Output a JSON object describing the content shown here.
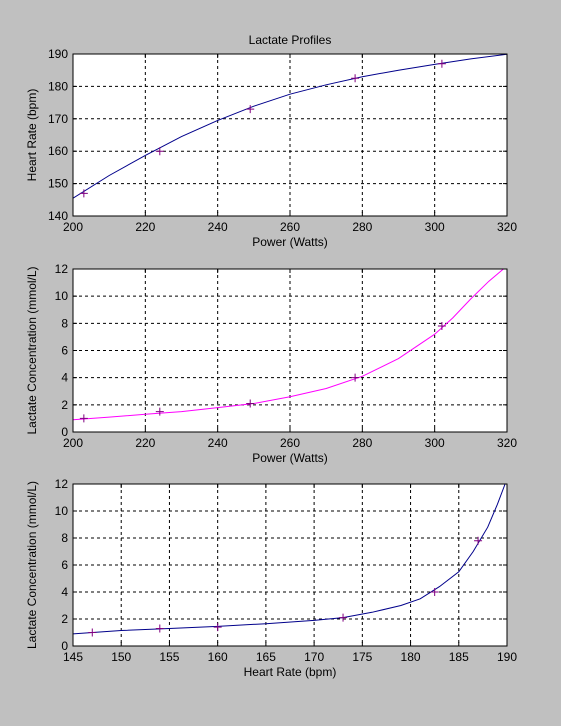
{
  "figure": {
    "background": "#c0c0c0",
    "axes_background": "#ffffff",
    "grid_color": "#000000",
    "marker_color": "#800080",
    "marker_style": "plus"
  },
  "chart_data": [
    {
      "type": "line",
      "title": "Lactate Profiles",
      "xlabel": "Power (Watts)",
      "ylabel": "Heart Rate (bpm)",
      "xlim": [
        200,
        320
      ],
      "ylim": [
        140,
        190
      ],
      "xticks": [
        200,
        220,
        240,
        260,
        280,
        300,
        320
      ],
      "yticks": [
        140,
        150,
        160,
        170,
        180,
        190
      ],
      "grid": true,
      "series": [
        {
          "style": "curve",
          "color": "#00008b",
          "x": [
            200,
            210,
            220,
            230,
            240,
            250,
            260,
            270,
            280,
            290,
            300,
            310,
            320
          ],
          "y": [
            145.5,
            152.5,
            158.7,
            164.5,
            169.5,
            173.9,
            177.6,
            180.5,
            183.0,
            185.0,
            186.8,
            188.5,
            189.9
          ]
        },
        {
          "style": "markers",
          "x": [
            203,
            224,
            249,
            278,
            302
          ],
          "y": [
            147,
            160,
            173,
            182.5,
            187
          ]
        }
      ]
    },
    {
      "type": "line",
      "title": "",
      "xlabel": "Power (Watts)",
      "ylabel": "Lactate Concentration (mmol/L)",
      "xlim": [
        200,
        320
      ],
      "ylim": [
        0,
        12
      ],
      "xticks": [
        200,
        220,
        240,
        260,
        280,
        300,
        320
      ],
      "yticks": [
        0,
        2,
        4,
        6,
        8,
        10,
        12
      ],
      "grid": true,
      "series": [
        {
          "style": "curve",
          "color": "#ff00ff",
          "x": [
            200,
            210,
            220,
            230,
            240,
            250,
            260,
            270,
            280,
            290,
            300,
            305,
            310,
            315,
            319
          ],
          "y": [
            0.9,
            1.1,
            1.3,
            1.5,
            1.8,
            2.1,
            2.6,
            3.2,
            4.1,
            5.4,
            7.2,
            8.4,
            9.8,
            11.1,
            12.0
          ]
        },
        {
          "style": "markers",
          "x": [
            203,
            224,
            249,
            278,
            302
          ],
          "y": [
            1.0,
            1.5,
            2.1,
            4.0,
            7.8
          ]
        }
      ]
    },
    {
      "type": "line",
      "title": "",
      "xlabel": "Heart Rate (bpm)",
      "ylabel": "Lactate Concentration (mmol/L)",
      "xlim": [
        145,
        190
      ],
      "ylim": [
        0,
        12
      ],
      "xticks": [
        145,
        150,
        155,
        160,
        165,
        170,
        175,
        180,
        185,
        190
      ],
      "yticks": [
        0,
        2,
        4,
        6,
        8,
        10,
        12
      ],
      "grid": true,
      "series": [
        {
          "style": "curve",
          "color": "#00008b",
          "x": [
            145,
            150,
            155,
            160,
            165,
            170,
            173,
            176,
            179,
            181,
            183,
            185,
            186.5,
            188,
            189,
            189.8
          ],
          "y": [
            0.9,
            1.15,
            1.3,
            1.45,
            1.65,
            1.9,
            2.1,
            2.5,
            3.0,
            3.5,
            4.4,
            5.5,
            7.0,
            8.8,
            10.5,
            12.0
          ]
        },
        {
          "style": "markers",
          "x": [
            147,
            154,
            160,
            173,
            182.5,
            187
          ],
          "y": [
            1.0,
            1.3,
            1.4,
            2.1,
            4.0,
            7.8
          ]
        }
      ]
    }
  ]
}
